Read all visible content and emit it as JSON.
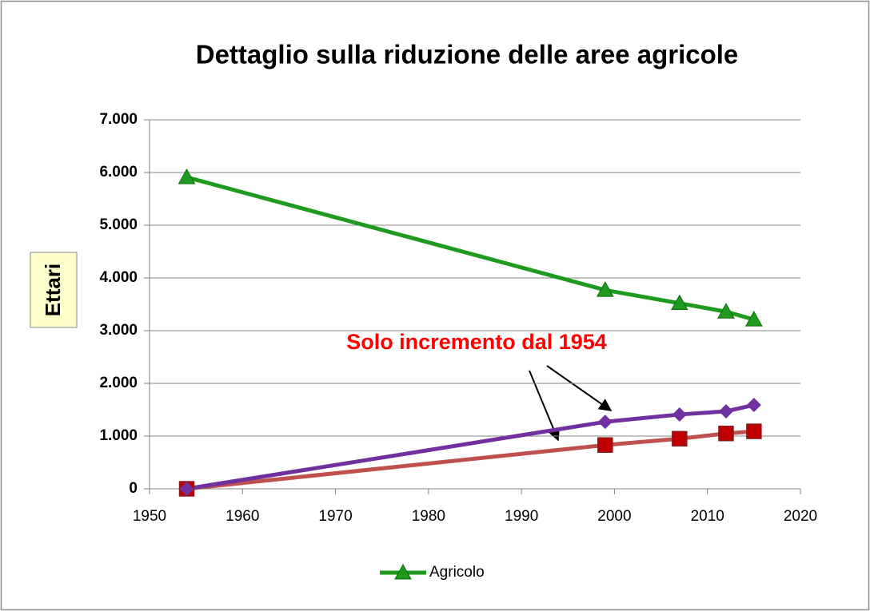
{
  "chart_data": {
    "type": "line",
    "title": "Dettaglio sulla riduzione delle aree agricole",
    "y_label": "Ettari",
    "annotation": "Solo incremento dal 1954",
    "x": [
      1954,
      1999,
      2007,
      2012,
      2015
    ],
    "series": [
      {
        "name": "Agricolo",
        "color": "#1e9a1e",
        "marker": "triangle",
        "values": [
          5910,
          3770,
          3520,
          3360,
          3210
        ]
      },
      {
        "color": "#c0504d",
        "marker": "square",
        "values": [
          0,
          830,
          950,
          1050,
          1090
        ]
      },
      {
        "color": "#7030a0",
        "marker": "diamond",
        "values": [
          0,
          1270,
          1410,
          1470,
          1590
        ]
      }
    ],
    "xlim": [
      1950,
      2020
    ],
    "xticks": [
      1950,
      1960,
      1970,
      1980,
      1990,
      2000,
      2010,
      2020
    ],
    "ylim": [
      0,
      7000
    ],
    "yticks": [
      0,
      {
        "value": 1000,
        "label": "1.000"
      },
      {
        "value": 2000,
        "label": "2.000"
      },
      {
        "value": 3000,
        "label": "3.000"
      },
      {
        "value": 4000,
        "label": "4.000"
      },
      {
        "value": 5000,
        "label": "5.000"
      },
      {
        "value": 6000,
        "label": "6.000"
      },
      {
        "value": 7000,
        "label": "7.000"
      }
    ],
    "grid": true,
    "legend": "bottom"
  }
}
